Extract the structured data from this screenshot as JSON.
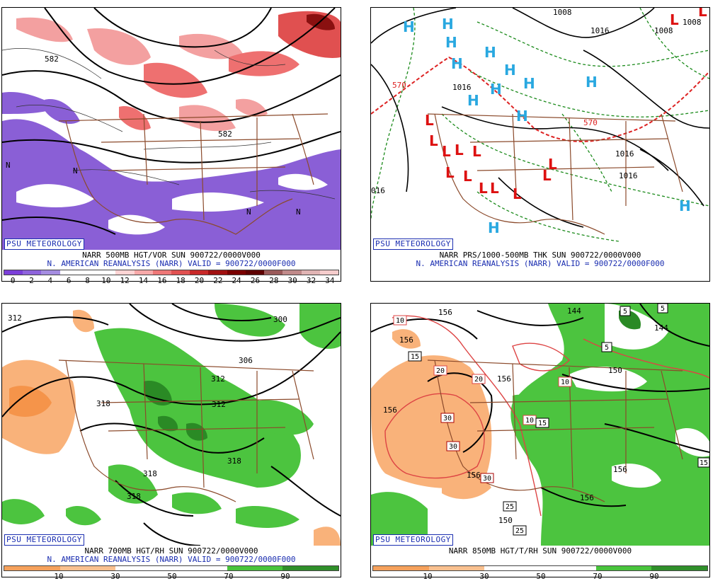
{
  "psu_label": "PSU METEOROLOGY",
  "panels": {
    "p1": {
      "caption": "NARR 500MB HGT/VOR SUN 900722/0000V000",
      "subcaption": "N. AMERICAN REANALYSIS (NARR) VALID = 900722/0000F000",
      "colorbar": {
        "colors": [
          "#7b3fd9",
          "#8e64dc",
          "#a48ce0",
          "#ffffff",
          "#ffffff",
          "#ffffff",
          "#ffd4d4",
          "#f7a9a9",
          "#ee7777",
          "#e05050",
          "#c82828",
          "#a01010",
          "#7a0000",
          "#5e0000",
          "#9a5a5a",
          "#c08a8a",
          "#e0b4b4",
          "#f5cccc"
        ],
        "ticks": [
          "0",
          "2",
          "4",
          "6",
          "8",
          "10",
          "12",
          "14",
          "16",
          "18",
          "20",
          "22",
          "24",
          "26",
          "28",
          "30",
          "32",
          "34"
        ]
      },
      "labels": [
        "582",
        "582",
        "N",
        "N",
        "N",
        "N"
      ]
    },
    "p2": {
      "caption": "NARR PRS/1000-500MB THK SUN 900722/0000V000",
      "subcaption": "N. AMERICAN REANALYSIS (NARR) VALID = 900722/0000F000",
      "labels": [
        "1008",
        "1016",
        "1016",
        "1008",
        "1008",
        "570",
        "570",
        "1016",
        "1016",
        "016"
      ],
      "high_marker": "H",
      "low_marker": "L"
    },
    "p3": {
      "caption": "NARR 700MB HGT/RH SUN 900722/0000V000",
      "subcaption": "N. AMERICAN REANALYSIS (NARR) VALID = 900722/0000F000",
      "colorbar": {
        "colors": [
          "#f5a15c",
          "#f5a15c",
          "#f9c08f",
          "#f9c08f",
          "#ffffff",
          "#ffffff",
          "#ffffff",
          "#ffffff",
          "#49c43c",
          "#49c43c",
          "#2f8f2a",
          "#2f8f2a"
        ],
        "ticks": [
          "10",
          "30",
          "50",
          "70",
          "90"
        ]
      },
      "labels": [
        "312",
        "306",
        "300",
        "318",
        "312",
        "318",
        "318",
        "318",
        "312"
      ]
    },
    "p4": {
      "caption": "NARR 850MB HGT/T/RH SUN 900722/0000V000",
      "subcaption": "",
      "colorbar": {
        "colors": [
          "#f5a15c",
          "#f5a15c",
          "#f9c08f",
          "#f9c08f",
          "#ffffff",
          "#ffffff",
          "#ffffff",
          "#ffffff",
          "#49c43c",
          "#49c43c",
          "#2f8f2a",
          "#2f8f2a"
        ],
        "ticks": [
          "10",
          "30",
          "50",
          "70",
          "90"
        ]
      },
      "labels": [
        "156",
        "156",
        "156",
        "156",
        "156",
        "156",
        "144",
        "144",
        "150",
        "150",
        "156"
      ],
      "boxed_labels": [
        "10",
        "15",
        "20",
        "20",
        "10",
        "10",
        "15",
        "30",
        "30",
        "30",
        "25",
        "25",
        "5",
        "5",
        "5",
        "15"
      ]
    }
  }
}
